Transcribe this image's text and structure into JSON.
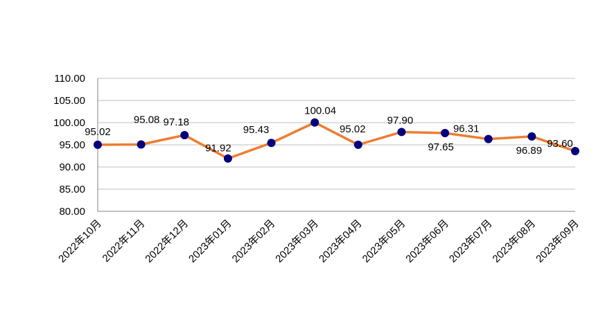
{
  "chart_data": {
    "type": "line",
    "title": "",
    "xlabel": "",
    "ylabel": "",
    "categories": [
      "2022年10月",
      "2022年11月",
      "2022年12月",
      "2023年01月",
      "2023年02月",
      "2023年03月",
      "2023年04月",
      "2023年05月",
      "2023年06月",
      "2023年07月",
      "2023年08月",
      "2023年09月"
    ],
    "series": [
      {
        "values": [
          95.02,
          95.08,
          97.18,
          91.92,
          95.43,
          100.04,
          95.02,
          97.9,
          97.65,
          96.31,
          96.89,
          93.6
        ],
        "labels": [
          "95.02",
          "95.08",
          "97.18",
          "91.92",
          "95.43",
          "100.04",
          "95.02",
          "97.90",
          "97.65",
          "96.31",
          "96.89",
          "93.60"
        ],
        "line_color": "#ED7D31",
        "marker_color": "#00007F"
      }
    ],
    "ylim": [
      80,
      110
    ],
    "yticks": [
      "80.00",
      "85.00",
      "90.00",
      "95.00",
      "100.00",
      "105.00",
      "110.00"
    ],
    "grid": true,
    "legend": "none",
    "grid_color": "#BFBFBF",
    "axis_color": "#808080"
  }
}
